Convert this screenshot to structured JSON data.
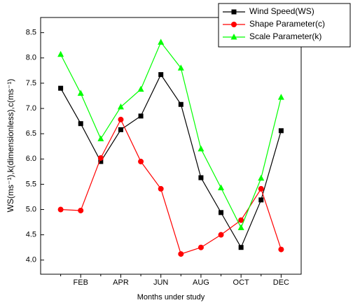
{
  "chart_data": {
    "type": "line",
    "x_label": "Months under study",
    "y_label": "WS(ms⁻¹),k(dimensionless),c(ms⁻¹)",
    "categories": [
      null,
      "FEB",
      null,
      "APR",
      null,
      "JUN",
      null,
      "AUG",
      null,
      "OCT",
      null,
      "DEC"
    ],
    "series": [
      {
        "name": "Wind Speed(WS)",
        "color": "#000000",
        "marker": "square",
        "values": [
          7.4,
          6.7,
          5.95,
          6.58,
          6.85,
          7.67,
          7.08,
          5.63,
          4.94,
          4.25,
          5.19,
          6.56
        ]
      },
      {
        "name": "Shape Parameter(c)",
        "color": "#ff0000",
        "marker": "circle",
        "values": [
          5.0,
          4.98,
          6.02,
          6.78,
          5.95,
          5.41,
          4.12,
          4.25,
          4.5,
          4.79,
          5.41,
          4.21
        ]
      },
      {
        "name": "Scale Parameter(k)",
        "color": "#00ff00",
        "marker": "triangle",
        "values": [
          8.07,
          7.3,
          6.4,
          7.03,
          7.38,
          8.31,
          7.8,
          6.2,
          5.43,
          4.64,
          5.62,
          7.22
        ]
      }
    ],
    "ylim": [
      3.72,
      8.8
    ],
    "yticks": [
      {
        "value": 4,
        "label": "4.0"
      },
      4.5,
      {
        "value": 5,
        "label": "5.0"
      },
      5.5,
      {
        "value": 6,
        "label": "6.0"
      },
      6.5,
      {
        "value": 7,
        "label": "7.0"
      },
      7.5,
      {
        "value": 8,
        "label": "8.0"
      },
      8.5
    ],
    "legend": "upper right",
    "grid": false
  }
}
